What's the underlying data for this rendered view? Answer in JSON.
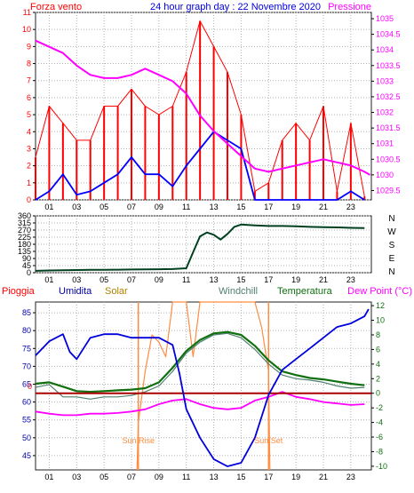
{
  "header": {
    "left": "Forza vento",
    "center": "24 hour graph day : 22 Novembre 2020",
    "right": "Pressione"
  },
  "chart_data": [
    {
      "type": "line",
      "name": "wind-pressure",
      "x_ticks": [
        "01",
        "03",
        "05",
        "07",
        "09",
        "11",
        "13",
        "15",
        "17",
        "19",
        "21",
        "23"
      ],
      "y_left_ticks": [
        "0",
        "1",
        "2",
        "3",
        "4",
        "5",
        "6",
        "7",
        "8",
        "9",
        "10",
        "11"
      ],
      "y_right_ticks": [
        "1029.5",
        "1030",
        "1030.5",
        "1031",
        "1031.5",
        "1032",
        "1032.5",
        "1033",
        "1033.5",
        "1034",
        "1034.5",
        "1035"
      ],
      "ylim_left": [
        0,
        11
      ],
      "ylim_right": [
        1029.2,
        1035.2
      ],
      "xlim": [
        0,
        24.5
      ],
      "colors": {
        "gust": "#ff0000",
        "wind": "#0000ff",
        "pressure": "#ff00ff"
      },
      "pressure": {
        "x": [
          0,
          1,
          2,
          3,
          4,
          5,
          6,
          7,
          8,
          9,
          10,
          11,
          12,
          13,
          14,
          15,
          16,
          17,
          18,
          19,
          20,
          21,
          22,
          23,
          24,
          24.4
        ],
        "y": [
          1034.3,
          1034.1,
          1033.9,
          1033.5,
          1033.2,
          1033.1,
          1033.1,
          1033.2,
          1033.4,
          1033.2,
          1033.0,
          1032.6,
          1031.9,
          1031.4,
          1031.0,
          1030.6,
          1030.2,
          1030.1,
          1030.2,
          1030.3,
          1030.4,
          1030.5,
          1030.4,
          1030.3,
          1030.1,
          1030.0
        ]
      },
      "wind": {
        "x": [
          0,
          1,
          2,
          3,
          4,
          5,
          6,
          7,
          8,
          9,
          10,
          11,
          12,
          13,
          14,
          15,
          16,
          17,
          18,
          19,
          20,
          21,
          22,
          23,
          24
        ],
        "y": [
          0,
          0.5,
          1.5,
          0.3,
          0.5,
          1.0,
          1.5,
          2.5,
          1.5,
          1.5,
          0.8,
          2.0,
          3.0,
          4.0,
          3.5,
          3.0,
          0,
          0,
          0,
          0,
          0,
          0,
          0,
          0.5,
          0
        ]
      },
      "gust": {
        "x": [
          0,
          1,
          2,
          3,
          4,
          5,
          6,
          7,
          8,
          9,
          10,
          11,
          12,
          13,
          14,
          15,
          16,
          17,
          18,
          19,
          20,
          21,
          22,
          23,
          24
        ],
        "y": [
          2.5,
          5.5,
          4.5,
          3.5,
          3.5,
          5.5,
          5.5,
          6.5,
          5.5,
          5.0,
          5.5,
          7.5,
          10.5,
          9.0,
          7.5,
          5.0,
          0.5,
          1.0,
          3.5,
          4.5,
          3.5,
          5.5,
          0.5,
          4.5,
          0.2
        ]
      }
    },
    {
      "type": "line",
      "name": "wind-direction",
      "x_ticks": [
        "01",
        "03",
        "05",
        "07",
        "09",
        "11",
        "13",
        "15",
        "17",
        "19",
        "21",
        "23"
      ],
      "y_ticks": [
        "0",
        "45",
        "90",
        "135",
        "180",
        "225",
        "270",
        "315",
        "360"
      ],
      "ylim": [
        0,
        360
      ],
      "xlim": [
        0,
        24.5
      ],
      "compass": [
        "N",
        "W",
        "S",
        "E",
        "N"
      ],
      "colors": {
        "direction": "#004020"
      },
      "direction": {
        "x": [
          0,
          1,
          2,
          3,
          4,
          5,
          6,
          7,
          8,
          9,
          10,
          11,
          11.5,
          12,
          12.5,
          13,
          13.5,
          14,
          14.5,
          15,
          16,
          17,
          18,
          19,
          20,
          21,
          22,
          23,
          24
        ],
        "y": [
          12,
          14,
          16,
          17,
          18,
          18,
          19,
          20,
          21,
          22,
          23,
          28,
          130,
          230,
          255,
          240,
          210,
          245,
          290,
          305,
          300,
          296,
          296,
          294,
          290,
          288,
          287,
          284,
          283
        ]
      }
    },
    {
      "type": "line",
      "name": "weather-multi",
      "labels": {
        "rain": "Pioggia",
        "humidity": "Umidita",
        "solar": "Solar",
        "windchill": "Windchill",
        "temperature": "Temperatura",
        "dewpoint": "Dew Point (°C)",
        "sunrise": "Sun Rise",
        "sunset": "Sun Set"
      },
      "x_ticks": [
        "01",
        "03",
        "05",
        "07",
        "09",
        "11",
        "13",
        "15",
        "17",
        "19",
        "21",
        "23"
      ],
      "y_left_ticks": [
        "45",
        "50",
        "55",
        "60",
        "65",
        "70",
        "75",
        "80",
        "85"
      ],
      "y_right_ticks": [
        "-10",
        "-8",
        "-6",
        "-4",
        "-2",
        "0",
        "2",
        "4",
        "6",
        "8",
        "10",
        "12"
      ],
      "rain_label": "0",
      "ylim_left": [
        41,
        88
      ],
      "ylim_right": [
        -10.5,
        12.5
      ],
      "xlim": [
        0,
        24.5
      ],
      "sunrise_hour": 7.5,
      "sunset_hour": 17.0,
      "colors": {
        "humidity": "#0000dd",
        "temperature": "#107010",
        "windchill": "#508070",
        "dewpoint": "#ff00ff",
        "solar": "#ff8c40",
        "rain": "#aa0000",
        "sun": "#ff8c40"
      },
      "humidity": {
        "x": [
          0,
          1,
          2,
          2.5,
          3,
          4,
          5,
          6,
          7,
          8,
          9,
          10,
          10.5,
          11,
          12,
          13,
          14,
          15,
          16,
          17,
          18,
          19,
          20,
          21,
          22,
          23,
          24,
          24.3
        ],
        "y": [
          73,
          77,
          79,
          74,
          72,
          78,
          79,
          79,
          78,
          78,
          78,
          76,
          68,
          58,
          50,
          44,
          42,
          43,
          50,
          62,
          69,
          72,
          75,
          78,
          81,
          82,
          84,
          86
        ]
      },
      "temperature": {
        "x": [
          0,
          1,
          2,
          3,
          4,
          5,
          6,
          7,
          8,
          9,
          10,
          11,
          12,
          13,
          14,
          15,
          16,
          17,
          18,
          19,
          20,
          21,
          22,
          23,
          24
        ],
        "y": [
          1.3,
          1.5,
          0.9,
          0.3,
          0.2,
          0.3,
          0.4,
          0.5,
          0.7,
          1.5,
          3.5,
          5.8,
          7.3,
          8.2,
          8.4,
          8.0,
          6.5,
          4.5,
          3.0,
          2.5,
          2.1,
          1.9,
          1.6,
          1.3,
          1.1
        ]
      },
      "windchill": {
        "x": [
          0,
          1,
          2,
          3,
          4,
          5,
          6,
          7,
          8,
          9,
          10,
          11,
          12,
          13,
          14,
          15,
          16,
          17,
          18,
          19,
          20,
          21,
          22,
          23,
          24
        ],
        "y": [
          0.8,
          1.2,
          -0.5,
          -0.5,
          -0.8,
          -0.5,
          -0.5,
          -0.3,
          0.2,
          1.0,
          3.0,
          5.5,
          7.0,
          8.0,
          8.2,
          7.6,
          6.0,
          4.0,
          2.5,
          2.0,
          1.8,
          1.5,
          1.0,
          0.7,
          0.8
        ]
      },
      "dewpoint": {
        "x": [
          0,
          1,
          2,
          3,
          4,
          5,
          6,
          7,
          8,
          9,
          10,
          11,
          12,
          13,
          14,
          15,
          16,
          17,
          18,
          19,
          20,
          21,
          22,
          23,
          24
        ],
        "y": [
          -2.5,
          -2.8,
          -3.0,
          -3.0,
          -2.8,
          -2.8,
          -2.7,
          -2.5,
          -2.2,
          -1.5,
          -1.0,
          -0.8,
          -1.5,
          -2.0,
          -2.2,
          -2.0,
          -1.0,
          -0.5,
          0.2,
          -0.5,
          -0.8,
          -1.2,
          -1.4,
          -1.6,
          -1.5
        ]
      },
      "solar": {
        "x": [
          7.4,
          7.5,
          8.0,
          8.5,
          9.0,
          9.5,
          10.0,
          10.5,
          11.0,
          11.5,
          12.0,
          12.5,
          13.0,
          14.0,
          15.0,
          16.0,
          16.5,
          17.0,
          17.1
        ],
        "y": [
          -10.5,
          -4.0,
          3.0,
          8.0,
          7.0,
          5.0,
          12.5,
          12.5,
          12.5,
          5.0,
          12.5,
          12.5,
          12.5,
          12.5,
          12.5,
          12.5,
          9.0,
          3.0,
          -10.5
        ]
      },
      "rain": {
        "x": [
          0,
          24.5
        ],
        "y": [
          0,
          0
        ]
      }
    }
  ]
}
